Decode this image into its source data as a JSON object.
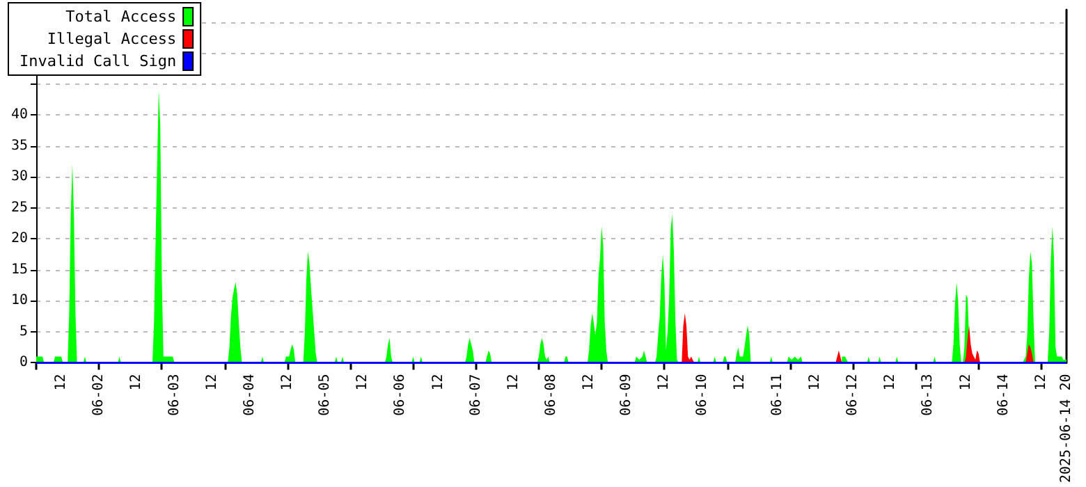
{
  "chart_data": {
    "type": "area",
    "xlim": [
      "2025-06-01T04:00",
      "2025-06-14T20:00"
    ],
    "xticks": [
      {
        "value": "2025-06-01T12:00",
        "label": "12"
      },
      {
        "value": "2025-06-02T00:00",
        "label": "06-02"
      },
      {
        "value": "2025-06-02T12:00",
        "label": "12"
      },
      {
        "value": "2025-06-03T00:00",
        "label": "06-03"
      },
      {
        "value": "2025-06-03T12:00",
        "label": "12"
      },
      {
        "value": "2025-06-04T00:00",
        "label": "06-04"
      },
      {
        "value": "2025-06-04T12:00",
        "label": "12"
      },
      {
        "value": "2025-06-05T00:00",
        "label": "06-05"
      },
      {
        "value": "2025-06-05T12:00",
        "label": "12"
      },
      {
        "value": "2025-06-06T00:00",
        "label": "06-06"
      },
      {
        "value": "2025-06-06T12:00",
        "label": "12"
      },
      {
        "value": "2025-06-07T00:00",
        "label": "06-07"
      },
      {
        "value": "2025-06-07T12:00",
        "label": "12"
      },
      {
        "value": "2025-06-08T00:00",
        "label": "06-08"
      },
      {
        "value": "2025-06-08T12:00",
        "label": "12"
      },
      {
        "value": "2025-06-09T00:00",
        "label": "06-09"
      },
      {
        "value": "2025-06-09T12:00",
        "label": "12"
      },
      {
        "value": "2025-06-10T00:00",
        "label": "06-10"
      },
      {
        "value": "2025-06-10T12:00",
        "label": "12"
      },
      {
        "value": "2025-06-11T00:00",
        "label": "06-11"
      },
      {
        "value": "2025-06-11T12:00",
        "label": "12"
      },
      {
        "value": "2025-06-12T00:00",
        "label": "06-12"
      },
      {
        "value": "2025-06-12T12:00",
        "label": "12"
      },
      {
        "value": "2025-06-13T00:00",
        "label": "06-13"
      },
      {
        "value": "2025-06-13T12:00",
        "label": "12"
      },
      {
        "value": "2025-06-14T00:00",
        "label": "06-14"
      },
      {
        "value": "2025-06-14T12:00",
        "label": "12"
      },
      {
        "value": "2025-06-14T20:00",
        "label": "2025-06-14 20"
      },
      {
        "value": "2025-06-01T04:00",
        "label": null
      },
      {
        "value": "2025-06-02T00:00",
        "label": null
      },
      {
        "value": "2025-06-02T20:00",
        "label": null
      },
      {
        "value": "2025-06-03T16:00",
        "label": null
      },
      {
        "value": "2025-06-04T12:00",
        "label": null
      },
      {
        "value": "2025-06-05T08:00",
        "label": null
      },
      {
        "value": "2025-06-06T04:00",
        "label": null
      },
      {
        "value": "2025-06-07T00:00",
        "label": null
      },
      {
        "value": "2025-06-07T20:00",
        "label": null
      },
      {
        "value": "2025-06-08T16:00",
        "label": null
      },
      {
        "value": "2025-06-09T12:00",
        "label": null
      },
      {
        "value": "2025-06-10T08:00",
        "label": null
      },
      {
        "value": "2025-06-11T04:00",
        "label": null
      },
      {
        "value": "2025-06-12T00:00",
        "label": null
      },
      {
        "value": "2025-06-12T20:00",
        "label": null
      },
      {
        "value": "2025-06-13T16:00",
        "label": null
      },
      {
        "value": "2025-06-14T12:00",
        "label": null
      }
    ],
    "ylim": [
      0,
      57
    ],
    "yticks": [
      0,
      5,
      10,
      15,
      20,
      25,
      30,
      35,
      40,
      {
        "value": 45,
        "label": null
      },
      {
        "value": 50,
        "label": null
      },
      {
        "value": 55,
        "label": null
      }
    ],
    "grid": "y",
    "legend": "top left",
    "series": [
      {
        "name": "Total Access",
        "color": "#00ff00",
        "x": [
          "2025-06-01T04:00",
          "2025-06-01T06:00",
          "2025-06-01T06:30",
          "2025-06-01T09:30",
          "2025-06-01T10:00",
          "2025-06-01T12:00",
          "2025-06-01T12:30",
          "2025-06-01T14:00",
          "2025-06-01T14:30",
          "2025-06-01T15:00",
          "2025-06-01T15:30",
          "2025-06-01T16:00",
          "2025-06-01T16:30",
          "2025-06-01T17:00",
          "2025-06-01T19:00",
          "2025-06-01T19:30",
          "2025-06-01T20:00",
          "2025-06-02T06:00",
          "2025-06-02T06:30",
          "2025-06-02T07:00",
          "2025-06-02T17:00",
          "2025-06-02T17:30",
          "2025-06-02T18:00",
          "2025-06-02T18:30",
          "2025-06-02T19:00",
          "2025-06-02T19:30",
          "2025-06-02T20:00",
          "2025-06-02T20:30",
          "2025-06-02T23:30",
          "2025-06-03T00:00",
          "2025-06-03T17:00",
          "2025-06-03T17:30",
          "2025-06-03T18:00",
          "2025-06-03T18:30",
          "2025-06-03T19:00",
          "2025-06-03T19:30",
          "2025-06-03T20:00",
          "2025-06-03T20:30",
          "2025-06-03T21:00",
          "2025-06-03T21:30",
          "2025-06-04T03:30",
          "2025-06-04T04:00",
          "2025-06-04T04:30",
          "2025-06-04T11:00",
          "2025-06-04T11:30",
          "2025-06-04T12:30",
          "2025-06-04T13:00",
          "2025-06-04T13:30",
          "2025-06-04T14:00",
          "2025-06-04T14:30",
          "2025-06-04T17:00",
          "2025-06-04T17:30",
          "2025-06-04T18:00",
          "2025-06-04T18:30",
          "2025-06-04T19:00",
          "2025-06-04T19:30",
          "2025-06-04T20:00",
          "2025-06-04T20:30",
          "2025-06-04T21:00",
          "2025-06-04T21:30",
          "2025-06-05T03:00",
          "2025-06-05T03:30",
          "2025-06-05T04:00",
          "2025-06-05T05:00",
          "2025-06-05T05:30",
          "2025-06-05T06:00",
          "2025-06-05T19:00",
          "2025-06-05T19:30",
          "2025-06-05T20:00",
          "2025-06-05T20:30",
          "2025-06-05T21:00",
          "2025-06-05T21:30",
          "2025-06-06T03:30",
          "2025-06-06T04:00",
          "2025-06-06T04:30",
          "2025-06-06T06:00",
          "2025-06-06T06:30",
          "2025-06-06T07:00",
          "2025-06-06T20:30",
          "2025-06-06T21:00",
          "2025-06-06T21:30",
          "2025-06-06T22:00",
          "2025-06-06T22:30",
          "2025-06-06T23:00",
          "2025-06-06T23:30",
          "2025-06-07T03:00",
          "2025-06-07T03:30",
          "2025-06-07T04:00",
          "2025-06-07T04:30",
          "2025-06-07T05:00",
          "2025-06-07T19:30",
          "2025-06-07T20:00",
          "2025-06-07T20:30",
          "2025-06-07T21:00",
          "2025-06-07T21:30",
          "2025-06-07T22:00",
          "2025-06-07T22:30",
          "2025-06-07T23:00",
          "2025-06-07T23:30",
          "2025-06-08T04:00",
          "2025-06-08T04:30",
          "2025-06-08T05:00",
          "2025-06-08T05:30",
          "2025-06-08T11:30",
          "2025-06-08T12:00",
          "2025-06-08T12:30",
          "2025-06-08T13:00",
          "2025-06-08T13:30",
          "2025-06-08T14:00",
          "2025-06-08T14:30",
          "2025-06-08T15:00",
          "2025-06-08T15:30",
          "2025-06-08T16:00",
          "2025-06-08T16:30",
          "2025-06-08T17:00",
          "2025-06-08T17:30",
          "2025-06-08T18:00",
          "2025-06-09T02:30",
          "2025-06-09T03:00",
          "2025-06-09T04:00",
          "2025-06-09T05:00",
          "2025-06-09T05:30",
          "2025-06-09T06:00",
          "2025-06-09T06:30",
          "2025-06-09T09:00",
          "2025-06-09T09:30",
          "2025-06-09T10:00",
          "2025-06-09T10:30",
          "2025-06-09T11:00",
          "2025-06-09T11:30",
          "2025-06-09T12:00",
          "2025-06-09T12:30",
          "2025-06-09T13:00",
          "2025-06-09T13:30",
          "2025-06-09T14:00",
          "2025-06-09T14:30",
          "2025-06-09T15:00",
          "2025-06-09T15:30",
          "2025-06-09T16:00",
          "2025-06-09T16:30",
          "2025-06-09T18:00",
          "2025-06-09T22:30",
          "2025-06-09T23:00",
          "2025-06-09T23:30",
          "2025-06-10T03:30",
          "2025-06-10T04:00",
          "2025-06-10T04:30",
          "2025-06-10T06:30",
          "2025-06-10T07:00",
          "2025-06-10T07:30",
          "2025-06-10T08:00",
          "2025-06-10T10:30",
          "2025-06-10T11:00",
          "2025-06-10T11:30",
          "2025-06-10T12:00",
          "2025-06-10T13:00",
          "2025-06-10T13:30",
          "2025-06-10T14:00",
          "2025-06-10T14:30",
          "2025-06-10T15:00",
          "2025-06-10T15:30",
          "2025-06-10T21:30",
          "2025-06-10T22:00",
          "2025-06-10T22:30",
          "2025-06-11T03:00",
          "2025-06-11T03:30",
          "2025-06-11T04:30",
          "2025-06-11T05:30",
          "2025-06-11T06:30",
          "2025-06-11T07:30",
          "2025-06-11T08:00",
          "2025-06-11T19:30",
          "2025-06-11T20:30",
          "2025-06-11T21:00",
          "2025-06-11T21:30",
          "2025-06-11T22:00",
          "2025-06-11T22:30",
          "2025-06-12T04:30",
          "2025-06-12T05:00",
          "2025-06-12T05:30",
          "2025-06-12T08:00",
          "2025-06-12T08:30",
          "2025-06-12T09:00",
          "2025-06-12T13:30",
          "2025-06-12T14:00",
          "2025-06-12T14:30",
          "2025-06-13T01:30",
          "2025-06-13T02:00",
          "2025-06-13T02:30",
          "2025-06-13T07:30",
          "2025-06-13T08:00",
          "2025-06-13T08:30",
          "2025-06-13T09:00",
          "2025-06-13T09:30",
          "2025-06-13T10:00",
          "2025-06-13T10:30",
          "2025-06-13T11:00",
          "2025-06-13T11:30",
          "2025-06-13T12:00",
          "2025-06-13T12:30",
          "2025-06-13T13:00",
          "2025-06-13T14:00",
          "2025-06-14T06:00",
          "2025-06-14T06:30",
          "2025-06-14T07:00",
          "2025-06-14T07:30",
          "2025-06-14T08:00",
          "2025-06-14T08:30",
          "2025-06-14T09:00",
          "2025-06-14T09:30",
          "2025-06-14T10:00",
          "2025-06-14T14:00",
          "2025-06-14T14:30",
          "2025-06-14T15:00",
          "2025-06-14T15:30",
          "2025-06-14T16:00",
          "2025-06-14T16:30",
          "2025-06-14T17:00",
          "2025-06-14T18:30",
          "2025-06-14T19:00",
          "2025-06-14T20:00"
        ],
        "values": [
          1,
          1,
          0,
          0,
          1,
          1,
          0,
          0,
          8,
          24,
          32,
          24,
          8,
          0,
          0,
          1,
          0,
          0,
          1,
          0,
          0,
          6.5,
          19.5,
          32,
          44,
          38.5,
          13.5,
          1,
          1,
          0,
          0,
          2.5,
          7.5,
          10.5,
          12,
          13,
          11,
          6.5,
          2.5,
          0,
          0,
          1,
          0,
          0,
          1,
          1,
          2.2,
          3,
          2.2,
          0,
          0,
          4.5,
          13.5,
          18,
          16,
          12,
          8.5,
          5,
          1.5,
          0,
          0,
          1,
          0,
          0,
          1,
          0,
          0,
          1,
          3,
          4,
          1,
          0,
          0,
          1,
          0,
          0,
          1,
          0,
          0,
          1,
          3,
          4,
          3,
          2,
          0,
          0,
          1,
          2,
          1.5,
          0,
          0,
          1,
          3,
          4,
          3,
          1,
          0.5,
          1,
          0,
          0,
          1,
          1,
          0,
          0,
          2,
          6,
          8,
          6.5,
          4.5,
          6.5,
          14,
          17,
          22,
          19,
          6.5,
          2,
          0,
          0,
          1,
          0.5,
          1,
          2,
          1,
          0,
          0,
          1,
          4.5,
          7.5,
          14,
          17.5,
          13,
          2,
          5,
          10.5,
          21.5,
          24,
          18,
          6.5,
          0.5,
          0,
          null,
          0,
          1,
          0,
          0,
          1,
          0,
          0,
          1,
          1,
          0,
          0,
          1.5,
          2.5,
          1,
          1,
          2.5,
          4.5,
          6,
          4.5,
          0,
          0,
          1,
          0,
          0,
          1,
          0.5,
          1,
          0.5,
          1,
          0,
          null,
          1,
          1,
          1,
          0.5,
          0,
          0,
          1,
          0,
          0,
          1,
          0,
          0,
          1,
          0,
          0,
          1,
          0,
          0,
          3,
          9.5,
          13,
          10,
          3,
          0,
          0,
          2.5,
          11,
          10.5,
          4,
          null,
          0,
          0.5,
          1,
          4.5,
          13.5,
          18,
          16,
          7,
          0,
          0,
          5,
          16.5,
          22,
          17,
          2.5,
          1,
          1,
          0.5,
          0.5
        ]
      },
      {
        "name": "Illegal Access",
        "color": "#ff0000",
        "x": [
          "2025-06-09T17:30",
          "2025-06-09T18:00",
          "2025-06-09T18:30",
          "2025-06-09T19:00",
          "2025-06-09T19:30",
          "2025-06-09T20:00",
          "2025-06-09T20:30",
          "2025-06-09T21:00",
          "2025-06-09T21:30",
          "2025-06-11T18:30",
          "2025-06-11T19:00",
          "2025-06-11T19:30",
          "2025-06-11T20:00",
          "2025-06-11T20:30",
          "2025-06-13T11:30",
          "2025-06-13T12:00",
          "2025-06-13T12:30",
          "2025-06-13T13:00",
          "2025-06-13T13:30",
          "2025-06-13T14:00",
          "2025-06-13T14:30",
          "2025-06-13T15:00",
          "2025-06-13T15:30",
          "2025-06-13T16:00",
          "2025-06-13T16:30",
          "2025-06-14T07:00",
          "2025-06-14T07:30",
          "2025-06-14T08:00",
          "2025-06-14T08:30",
          "2025-06-14T09:00",
          "2025-06-14T09:30"
        ],
        "values": [
          0,
          6,
          8,
          6,
          1,
          0.5,
          1,
          0.5,
          0,
          0,
          1,
          2,
          1,
          0,
          0,
          1,
          4,
          6,
          3,
          1.5,
          1,
          0.5,
          2,
          1.5,
          0,
          0,
          1.5,
          3,
          2.5,
          1.5,
          0
        ]
      },
      {
        "name": "Invalid Call Sign",
        "color": "#0000ff",
        "type": "line",
        "x": [
          "2025-06-01T04:00",
          "2025-06-14T20:00"
        ],
        "values": [
          0,
          0
        ]
      }
    ]
  }
}
